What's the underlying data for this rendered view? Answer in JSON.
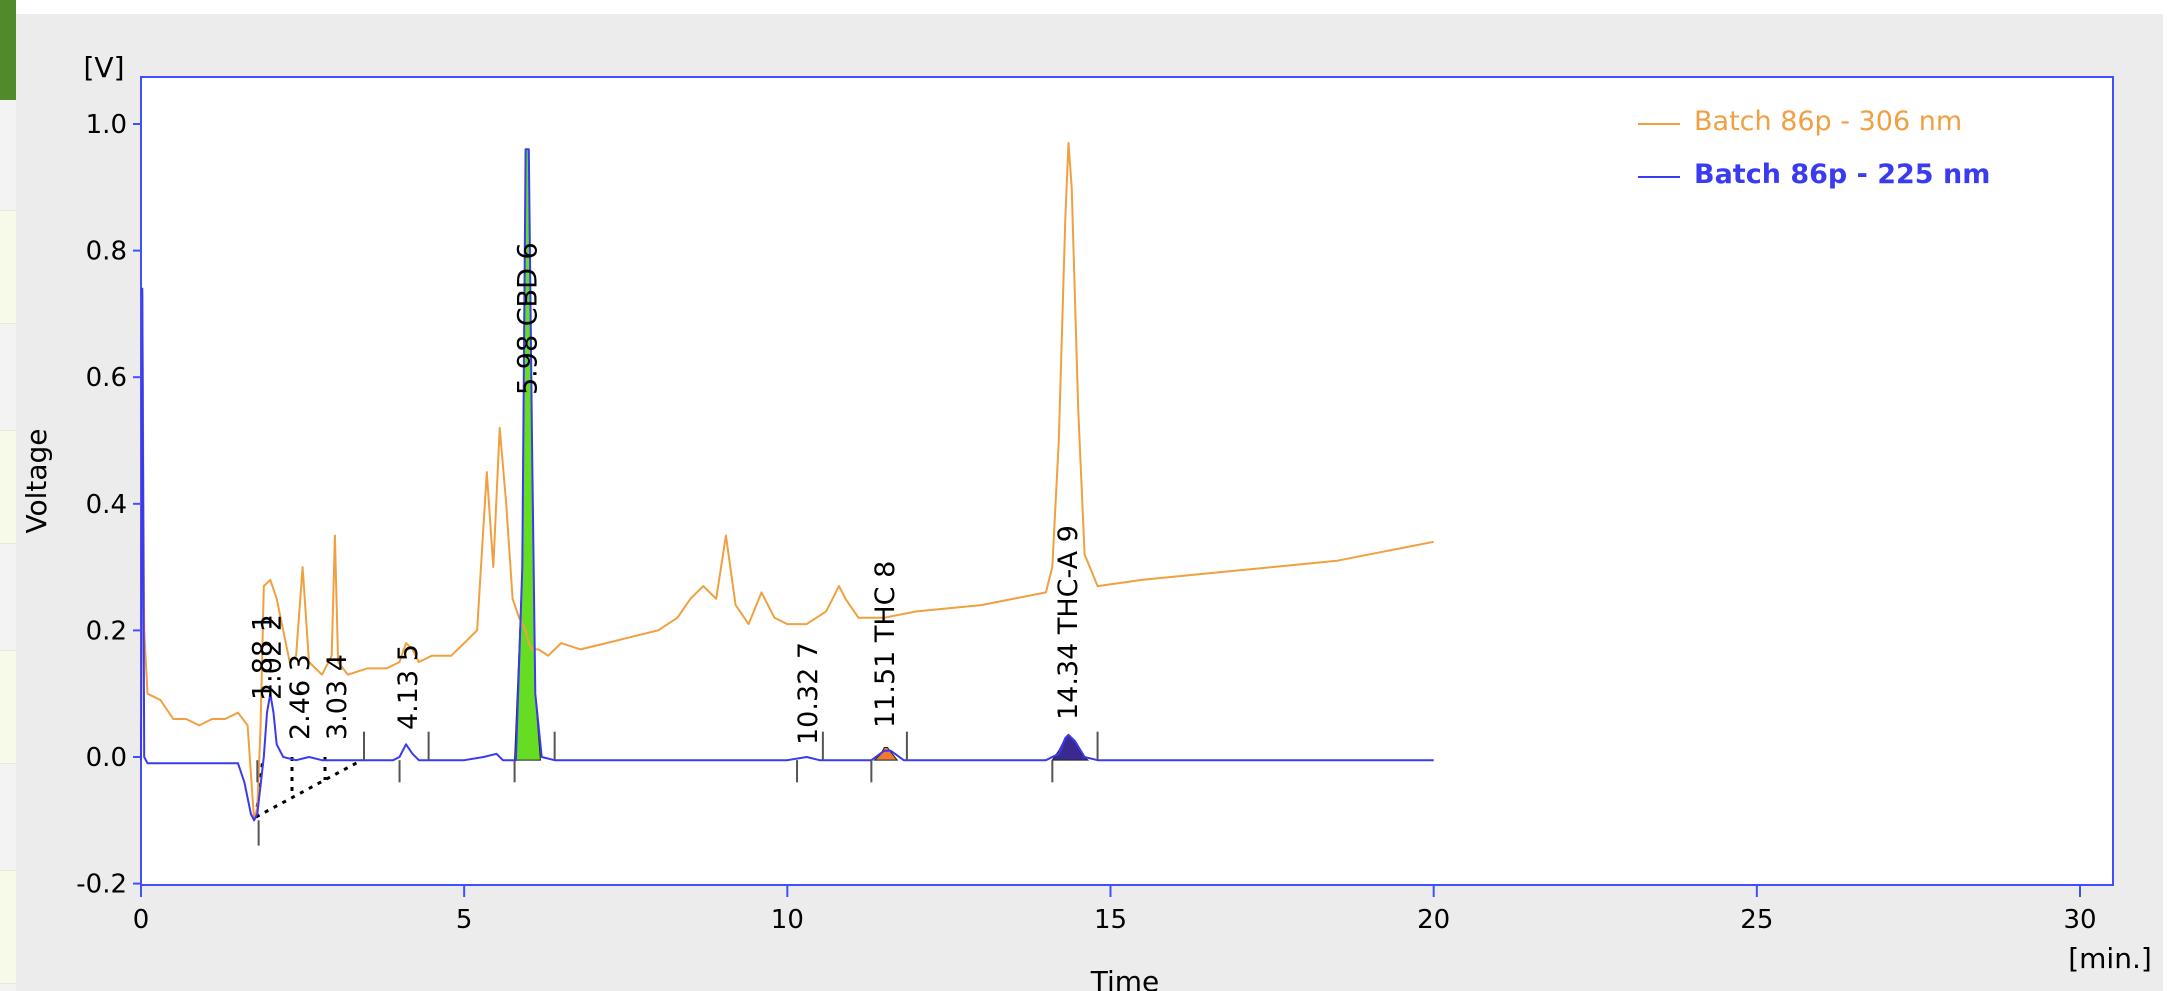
{
  "chart_data": {
    "type": "line",
    "x_unit": "[min.]",
    "y_unit": "[V]",
    "xlabel": "Time",
    "ylabel": "Voltage",
    "xlim": [
      0,
      30
    ],
    "ylim": [
      -0.2,
      1.1
    ],
    "x_ticks": [
      "0",
      "5",
      "10",
      "15",
      "20",
      "25",
      "30"
    ],
    "y_ticks": [
      "-0.2",
      "0.0",
      "0.2",
      "0.4",
      "0.6",
      "0.8",
      "1.0"
    ],
    "grid": false,
    "legend_position": "top-right",
    "series": [
      {
        "name": "Batch 86p - 306 nm",
        "color": "#f0a040",
        "x": [
          0,
          0.02,
          0.05,
          0.1,
          0.3,
          0.5,
          0.7,
          0.9,
          1.1,
          1.3,
          1.5,
          1.65,
          1.75,
          1.8,
          1.85,
          1.9,
          2.0,
          2.1,
          2.2,
          2.3,
          2.4,
          2.5,
          2.6,
          2.8,
          2.95,
          3.0,
          3.05,
          3.2,
          3.5,
          3.8,
          4.0,
          4.1,
          4.2,
          4.3,
          4.5,
          4.8,
          5.0,
          5.2,
          5.35,
          5.45,
          5.55,
          5.65,
          5.75,
          5.85,
          5.95,
          6.0,
          6.05,
          6.15,
          6.3,
          6.5,
          6.8,
          7.2,
          7.6,
          8.0,
          8.3,
          8.5,
          8.7,
          8.9,
          9.05,
          9.2,
          9.4,
          9.6,
          9.8,
          10.0,
          10.3,
          10.6,
          10.8,
          10.9,
          11.1,
          11.5,
          12.0,
          13.0,
          14.0,
          14.1,
          14.2,
          14.3,
          14.35,
          14.4,
          14.5,
          14.6,
          14.8,
          15.5,
          16.5,
          17.5,
          18.5,
          19.5,
          20.0
        ],
        "values": [
          0.05,
          0.73,
          0.2,
          0.1,
          0.09,
          0.06,
          0.06,
          0.05,
          0.06,
          0.06,
          0.07,
          0.05,
          -0.1,
          -0.08,
          0.05,
          0.27,
          0.28,
          0.25,
          0.2,
          0.15,
          0.16,
          0.3,
          0.15,
          0.13,
          0.16,
          0.35,
          0.15,
          0.13,
          0.14,
          0.14,
          0.15,
          0.18,
          0.17,
          0.15,
          0.16,
          0.16,
          0.18,
          0.2,
          0.45,
          0.3,
          0.52,
          0.4,
          0.25,
          0.22,
          0.2,
          0.18,
          0.17,
          0.17,
          0.16,
          0.18,
          0.17,
          0.18,
          0.19,
          0.2,
          0.22,
          0.25,
          0.27,
          0.25,
          0.35,
          0.24,
          0.21,
          0.26,
          0.22,
          0.21,
          0.21,
          0.23,
          0.27,
          0.25,
          0.22,
          0.22,
          0.23,
          0.24,
          0.26,
          0.3,
          0.5,
          0.85,
          0.97,
          0.9,
          0.55,
          0.32,
          0.27,
          0.28,
          0.29,
          0.3,
          0.31,
          0.33,
          0.34
        ]
      },
      {
        "name": "Batch 86p - 225 nm",
        "color": "#3a3af0",
        "x": [
          0,
          0.02,
          0.05,
          0.1,
          0.5,
          1.0,
          1.5,
          1.6,
          1.7,
          1.75,
          1.8,
          1.9,
          1.95,
          2.0,
          2.05,
          2.1,
          2.2,
          2.4,
          2.6,
          2.8,
          3.0,
          3.5,
          3.9,
          4.0,
          4.1,
          4.2,
          4.3,
          4.5,
          5.0,
          5.3,
          5.5,
          5.6,
          5.8,
          5.9,
          5.95,
          6.0,
          6.05,
          6.1,
          6.2,
          6.4,
          7.0,
          8.0,
          9.0,
          10.0,
          10.3,
          10.5,
          10.8,
          11.3,
          11.5,
          11.6,
          11.8,
          12.0,
          13.0,
          14.0,
          14.2,
          14.3,
          14.35,
          14.45,
          14.6,
          14.8,
          15.5,
          17.0,
          18.5,
          20.0
        ],
        "values": [
          -0.005,
          0.74,
          0.0,
          -0.01,
          -0.01,
          -0.01,
          -0.01,
          -0.04,
          -0.09,
          -0.1,
          -0.09,
          0.0,
          0.07,
          0.1,
          0.07,
          0.02,
          0.0,
          -0.005,
          0.0,
          -0.005,
          -0.005,
          -0.005,
          -0.005,
          0.0,
          0.02,
          0.005,
          -0.005,
          -0.005,
          -0.005,
          0.0,
          0.005,
          -0.005,
          -0.005,
          0.3,
          0.96,
          0.96,
          0.5,
          0.1,
          0.0,
          -0.005,
          -0.005,
          -0.005,
          -0.005,
          -0.005,
          0.0,
          -0.005,
          -0.005,
          -0.005,
          0.01,
          0.01,
          -0.005,
          -0.005,
          -0.005,
          -0.005,
          0.005,
          0.03,
          0.035,
          0.025,
          0.0,
          -0.005,
          -0.005,
          -0.005,
          -0.005,
          -0.005
        ]
      }
    ],
    "peaks": [
      {
        "label": "1.88  1",
        "x": 1.88
      },
      {
        "label": "2.02  2",
        "x": 2.02
      },
      {
        "label": "2.46  3",
        "x": 2.46
      },
      {
        "label": "3.03  4",
        "x": 3.03
      },
      {
        "label": "4.13  5",
        "x": 4.13
      },
      {
        "label": "5.98 CBD  6",
        "x": 5.98
      },
      {
        "label": "10.32  7",
        "x": 10.32
      },
      {
        "label": "11.51 THC  8",
        "x": 11.51
      },
      {
        "label": "14.34 THC-A  9",
        "x": 14.34
      }
    ],
    "filled_peaks": [
      {
        "x": [
          5.78,
          5.9,
          5.95,
          6.0,
          6.05,
          6.1,
          6.18
        ],
        "values": [
          -0.005,
          0.3,
          0.96,
          0.96,
          0.5,
          0.1,
          -0.005
        ],
        "color": "#66dd22"
      },
      {
        "x": [
          11.35,
          11.45,
          11.5,
          11.55,
          11.6,
          11.7
        ],
        "values": [
          -0.005,
          0.005,
          0.015,
          0.015,
          0.008,
          -0.005
        ],
        "color": "#f07a30"
      },
      {
        "x": [
          14.1,
          14.2,
          14.3,
          14.35,
          14.45,
          14.55,
          14.65
        ],
        "values": [
          -0.005,
          0.01,
          0.03,
          0.035,
          0.025,
          0.005,
          -0.005
        ],
        "color": "#3a2a90"
      }
    ]
  }
}
